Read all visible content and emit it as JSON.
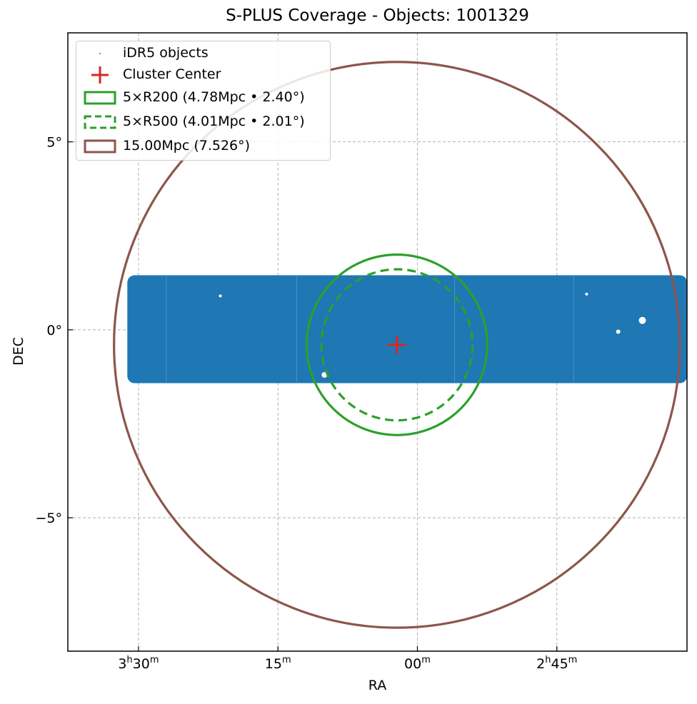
{
  "chart_data": {
    "type": "scatter",
    "title": "S-PLUS Coverage - Objects: 1001329",
    "xlabel": "RA",
    "ylabel": "DEC",
    "x_ticks": [
      {
        "ra_deg": 52.5,
        "h": "3",
        "m": "30"
      },
      {
        "ra_deg": 48.75,
        "h": "",
        "m": "15"
      },
      {
        "ra_deg": 45.0,
        "h": "",
        "m": "00"
      },
      {
        "ra_deg": 41.25,
        "h": "2",
        "m": "45"
      }
    ],
    "y_ticks": [
      {
        "dec": 5,
        "label": "5°"
      },
      {
        "dec": 0,
        "label": "0°"
      },
      {
        "dec": -5,
        "label": "−5°"
      }
    ],
    "xlim_deg": [
      54.4,
      37.75
    ],
    "ylim_deg": [
      -8.55,
      7.9
    ],
    "grid": true,
    "legend_position": "top-left",
    "coverage_stripe": {
      "name": "iDR5 objects",
      "ra_range_deg": [
        37.75,
        52.8
      ],
      "dec_range_deg": [
        -1.42,
        1.45
      ],
      "color": "#1f77b4"
    },
    "cluster_center": {
      "name": "Cluster Center",
      "ra_deg": 45.55,
      "dec_deg": -0.4,
      "color": "#d62728"
    },
    "circles": [
      {
        "name": "5×R200 (4.78Mpc • 2.40°)",
        "radius_deg": 2.4,
        "style": "solid",
        "color": "#2ca02c"
      },
      {
        "name": "5×R500 (4.01Mpc • 2.01°)",
        "radius_deg": 2.01,
        "style": "dashed",
        "color": "#2ca02c"
      },
      {
        "name": "15.00Mpc (7.526°)",
        "radius_deg": 7.526,
        "style": "solid",
        "color": "#8c564b"
      }
    ],
    "objects_count": 1001329
  },
  "legend": {
    "entries": [
      "iDR5 objects",
      "Cluster Center",
      "5×R200 (4.78Mpc • 2.40°)",
      "5×R500 (4.01Mpc • 2.01°)",
      "15.00Mpc (7.526°)"
    ]
  }
}
